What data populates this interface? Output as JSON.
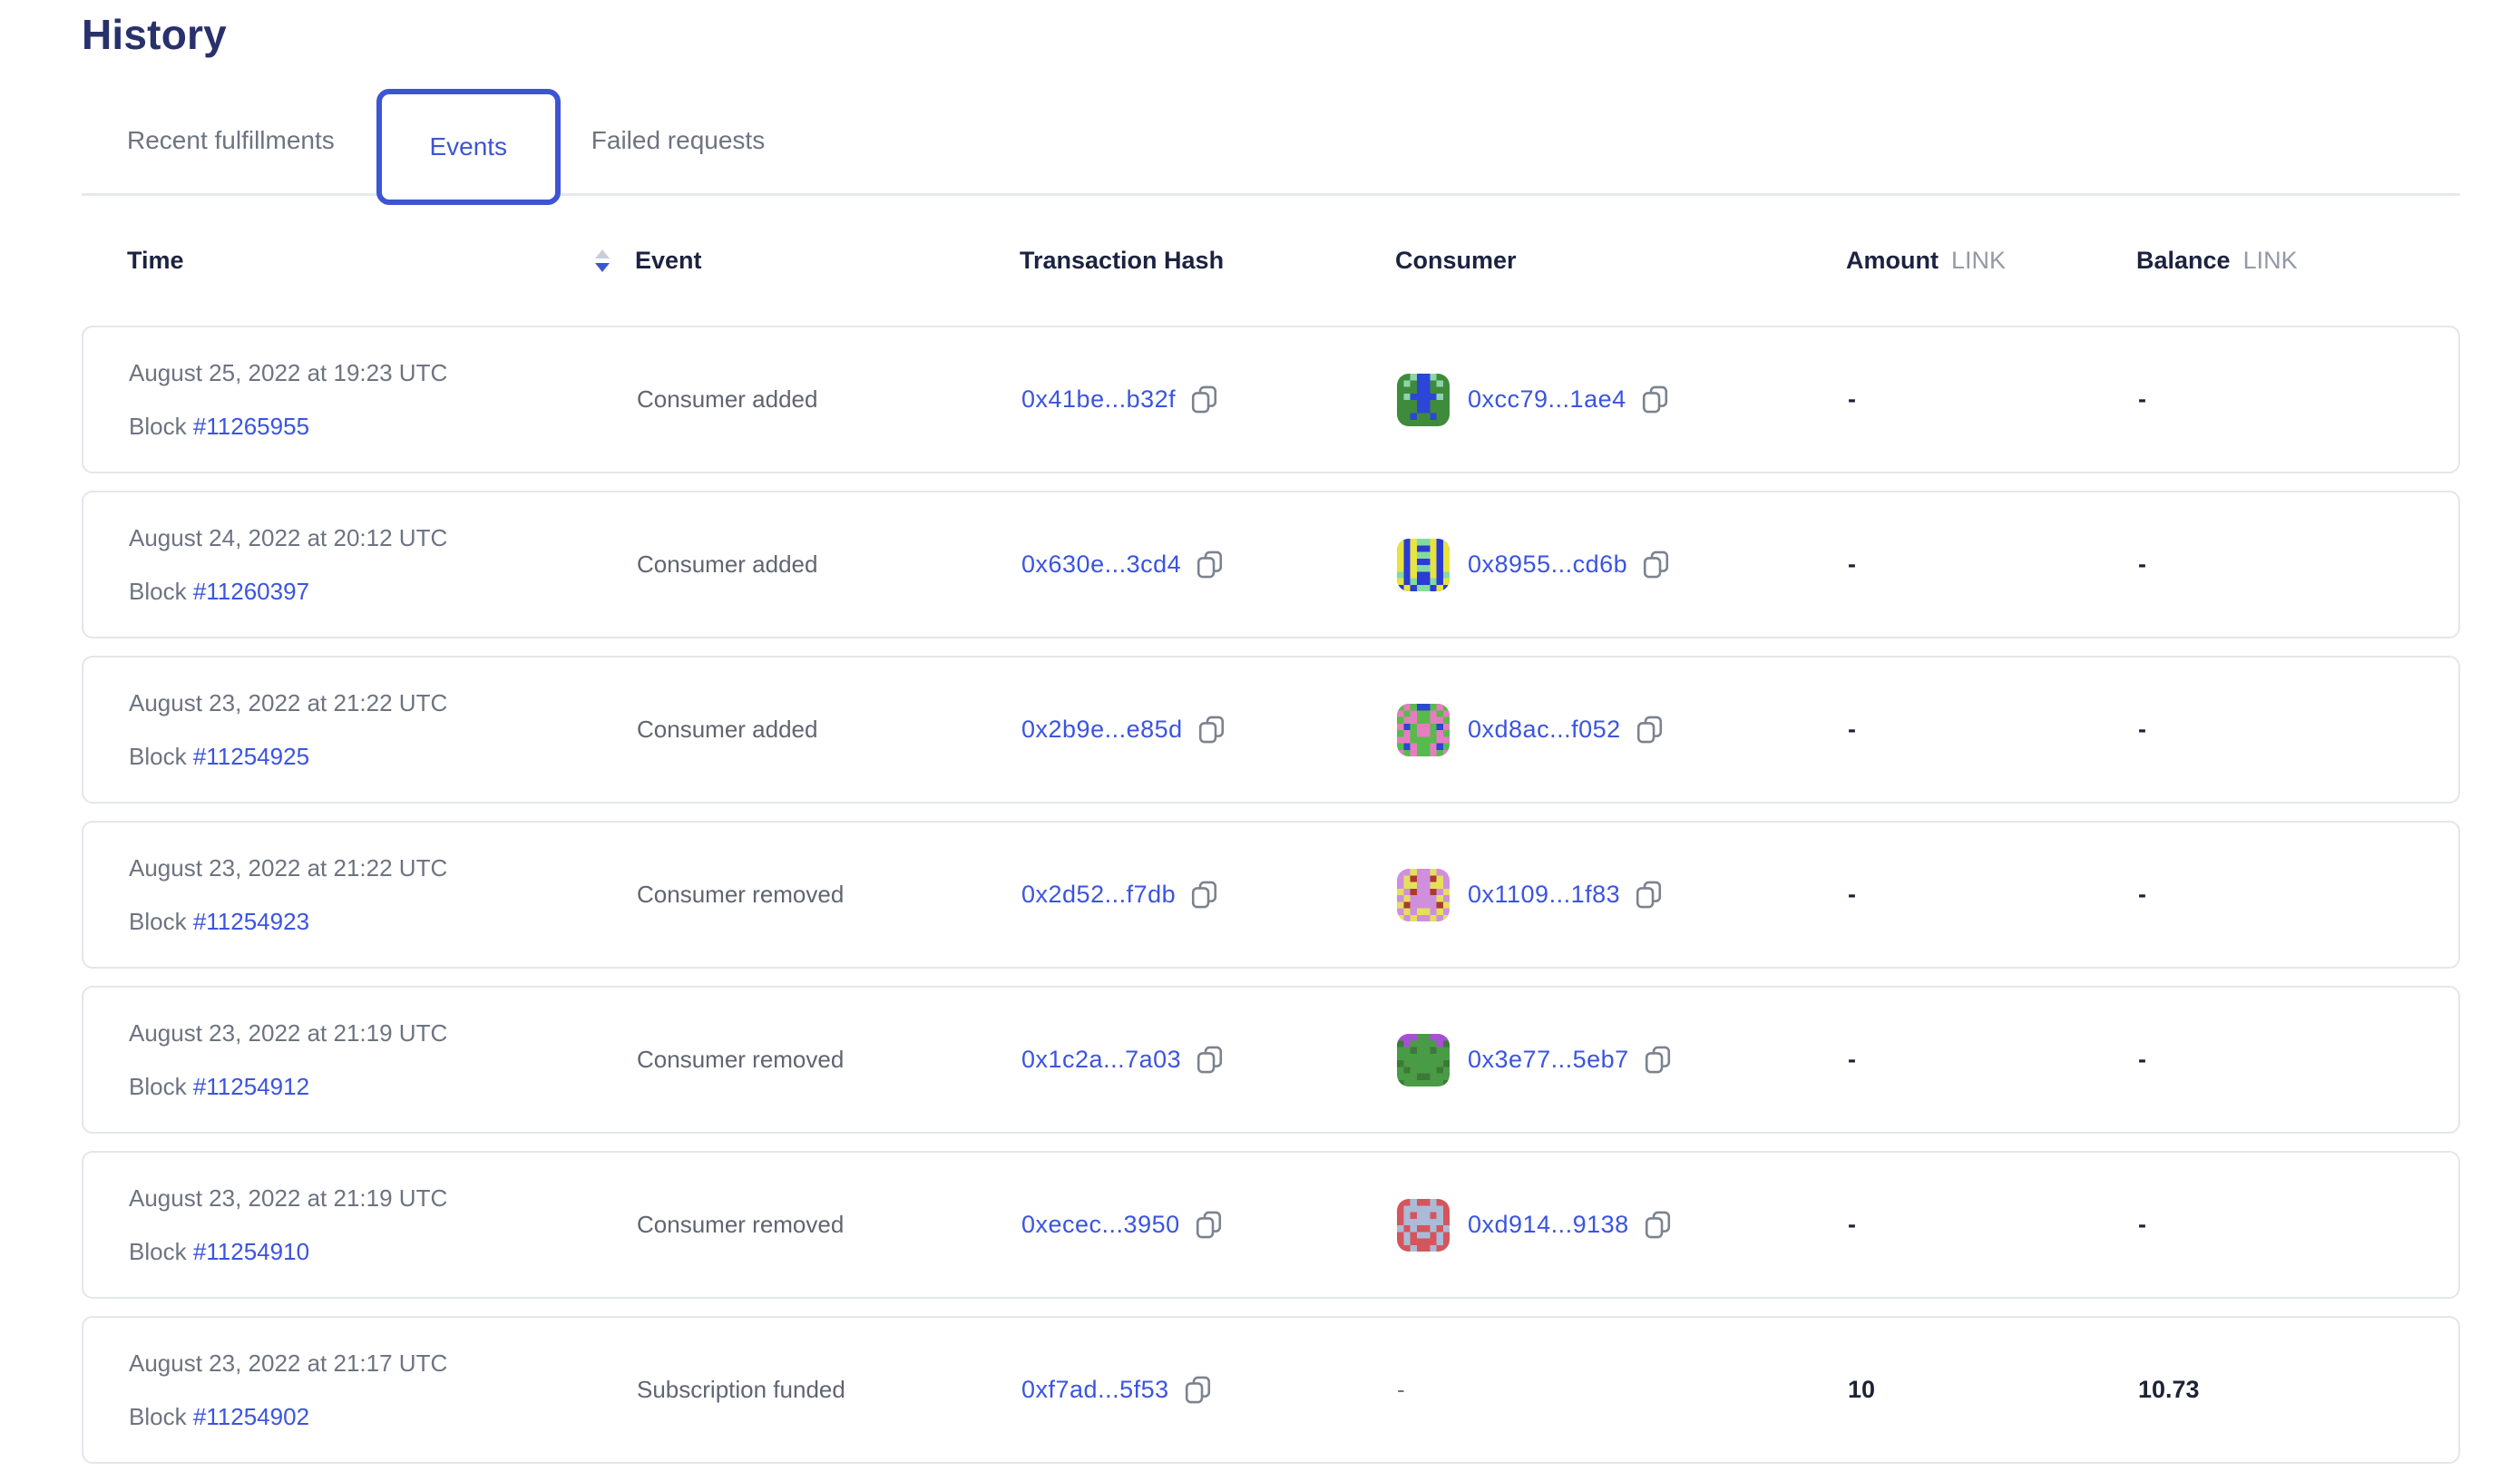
{
  "page": {
    "title": "History"
  },
  "tabs": [
    {
      "label": "Recent fulfillments",
      "active": false
    },
    {
      "label": "Events",
      "active": true
    },
    {
      "label": "Failed requests",
      "active": false
    }
  ],
  "table": {
    "columns": {
      "time": "Time",
      "event": "Event",
      "tx": "Transaction Hash",
      "consumer": "Consumer",
      "amount": "Amount",
      "balance": "Balance",
      "unit": "LINK"
    },
    "sort": {
      "column": "Time",
      "direction": "descending"
    },
    "rows": [
      {
        "date": "August 25, 2022 at 19:23 UTC",
        "block_label": "Block",
        "block": "#11265955",
        "event": "Consumer added",
        "tx_hash": "0x41be...b32f",
        "consumer": "0xcc79...1ae4",
        "identicon": {
          "bg": "#3F8B3C",
          "color": "#2C46D8",
          "spot": "#8ED3AE",
          "pattern": [
            "bbsccsbb",
            "bsbccbsb",
            "bbbccbbb",
            "bsccccsb",
            "bbbccbbb",
            "bbbccbbb",
            "bbcbbcbb",
            "bbbbbbbb"
          ]
        },
        "amount": "-",
        "balance": "-"
      },
      {
        "date": "August 24, 2022 at 20:12 UTC",
        "block_label": "Block",
        "block": "#11260397",
        "event": "Consumer added",
        "tx_hash": "0x630e...3cd4",
        "consumer": "0x8955...cd6b",
        "identicon": {
          "bg": "#2B3BD4",
          "color": "#E9E43C",
          "spot": "#83DBA0",
          "pattern": [
            "cbcsscbc",
            "cbcbbcbc",
            "cbcsscbc",
            "cbcbbcbc",
            "cbcsscbc",
            "sbcbbcbs",
            "cbsbbsbc",
            "bcbssbcb"
          ]
        },
        "amount": "-",
        "balance": "-"
      },
      {
        "date": "August 23, 2022 at 21:22 UTC",
        "block_label": "Block",
        "block": "#11254925",
        "event": "Consumer added",
        "tx_hash": "0x2b9e...e85d",
        "consumer": "0xd8ac...f052",
        "identicon": {
          "bg": "#56BB4A",
          "color": "#E87CC0",
          "spot": "#2A49CC",
          "pattern": [
            "bcbssbcb",
            "cbcbbcbc",
            "bccbbccb",
            "csbccbsc",
            "bcbccbcb",
            "ccbbbbcc",
            "bscbbcsb",
            "cbcbbcbc"
          ]
        },
        "amount": "-",
        "balance": "-"
      },
      {
        "date": "August 23, 2022 at 21:22 UTC",
        "block_label": "Block",
        "block": "#11254923",
        "event": "Consumer removed",
        "tx_hash": "0x2d52...f7db",
        "consumer": "0x1109...1f83",
        "identicon": {
          "bg": "#CF8FDC",
          "color": "#E4E05C",
          "spot": "#AA3A2E",
          "pattern": [
            "bbcbbcbb",
            "bcsbbscb",
            "bccbbccb",
            "cbsbbsbc",
            "bcbbbbcb",
            "csbbbbsc",
            "bcbccbcb",
            "cbcbbcbc"
          ]
        },
        "amount": "-",
        "balance": "-"
      },
      {
        "date": "August 23, 2022 at 21:19 UTC",
        "block_label": "Block",
        "block": "#11254912",
        "event": "Consumer removed",
        "tx_hash": "0x1c2a...7a03",
        "consumer": "0x3e77...5eb7",
        "identicon": {
          "bg": "#4A9B45",
          "color": "#A94FD6",
          "spot": "#3C7A38",
          "pattern": [
            "cccbbccc",
            "scbbbbcs",
            "bbsbbsbb",
            "bbbbbbbb",
            "sbbbbbbs",
            "bsbbbbsb",
            "bbbssbbb",
            "sbbbbbbs"
          ]
        },
        "amount": "-",
        "balance": "-"
      },
      {
        "date": "August 23, 2022 at 21:19 UTC",
        "block_label": "Block",
        "block": "#11254910",
        "event": "Consumer removed",
        "tx_hash": "0xecec...3950",
        "consumer": "0xd914...9138",
        "identicon": {
          "bg": "#D4555C",
          "color": "#AABBD8",
          "spot": "#BC3C40",
          "pattern": [
            "bbcbbcbb",
            "bccccccb",
            "bcbccbcb",
            "bccccccb",
            "cbcbbcbc",
            "bcbccbcb",
            "bcbbbbcb",
            "bbcbbcbb"
          ]
        },
        "amount": "-",
        "balance": "-"
      },
      {
        "date": "August 23, 2022 at 21:17 UTC",
        "block_label": "Block",
        "block": "#11254902",
        "event": "Subscription funded",
        "tx_hash": "0xf7ad...5f53",
        "consumer": "-",
        "identicon": null,
        "amount": "10",
        "balance": "10.73"
      }
    ]
  },
  "icons": {
    "copy": "copy-icon",
    "sort": "sort-toggle-icon"
  },
  "colors": {
    "accent_blue": "#3D55D2",
    "link_blue": "#3B54E0",
    "heading_navy": "#28316B",
    "header_text": "#1C2340",
    "muted_gray": "#6D7480",
    "event_gray": "#5F6571",
    "link_label_gray": "#939AA6",
    "value_dark": "#1D2335",
    "card_border": "#E4E6EA"
  }
}
